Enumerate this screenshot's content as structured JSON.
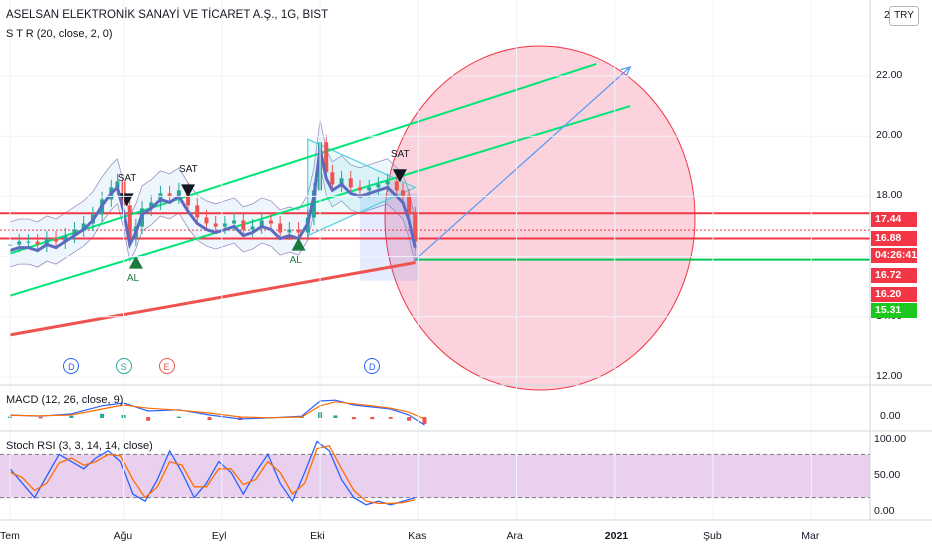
{
  "header": {
    "title": "ASELSAN ELEKTRONİK SANAYİ VE TİCARET A.Ş., 1G, BIST",
    "indicator": "S T R  (20, close, 2, 0)"
  },
  "currency": "TRY",
  "panes": {
    "macd_label": "MACD (12, 26, close, 9)",
    "rsi_label": "Stoch RSI (3, 3, 14, 14, close)"
  },
  "price_axis": {
    "top_partial": "2",
    "ticks": [
      {
        "value": 22,
        "label": "22.00"
      },
      {
        "value": 20,
        "label": "20.00"
      },
      {
        "value": 18,
        "label": "18.00"
      },
      {
        "value": 14,
        "label": "14.00"
      },
      {
        "value": 12,
        "label": "12.00"
      }
    ]
  },
  "price_tags": [
    {
      "value": 17.44,
      "label": "17.44",
      "color": "#f23645"
    },
    {
      "value": 16.88,
      "label": "16.88",
      "color": "#f23645"
    },
    {
      "value": 16.6,
      "label": "04:26:41",
      "color": "#f23645"
    },
    {
      "value": 16.1,
      "label": "16.72",
      "color": "#f23645"
    },
    {
      "value": 15.6,
      "label": "16.20",
      "color": "#f23645"
    },
    {
      "value": 15.1,
      "label": "15.31",
      "color": "#1ec71e"
    }
  ],
  "macd_axis": [
    {
      "value": 0,
      "label": "0.00"
    }
  ],
  "rsi_axis": [
    {
      "value": 100,
      "label": "100.00"
    },
    {
      "value": 50,
      "label": "50.00"
    },
    {
      "value": 0,
      "label": "0.00"
    }
  ],
  "time_axis": [
    {
      "day": 0,
      "label": "Tem"
    },
    {
      "day": 37,
      "label": "Ağu"
    },
    {
      "day": 69,
      "label": "Eyl"
    },
    {
      "day": 101,
      "label": "Eki"
    },
    {
      "day": 133,
      "label": "Kas"
    },
    {
      "day": 165,
      "label": "Ara"
    },
    {
      "day": 197,
      "label": "2021"
    },
    {
      "day": 229,
      "label": "Şub"
    },
    {
      "day": 261,
      "label": "Mar"
    }
  ],
  "signals": [
    {
      "text": "SAT",
      "day": 38,
      "price": 18.1,
      "kind": "sell"
    },
    {
      "text": "SAT",
      "day": 58,
      "price": 18.4,
      "kind": "sell"
    },
    {
      "text": "SAT",
      "day": 127,
      "price": 18.9,
      "kind": "sell"
    },
    {
      "text": "AL",
      "day": 41,
      "price": 15.6,
      "kind": "buy"
    },
    {
      "text": "AL",
      "day": 94,
      "price": 16.2,
      "kind": "buy"
    }
  ],
  "events": [
    {
      "text": "D",
      "day": 20,
      "color": "#2962ff"
    },
    {
      "text": "S",
      "day": 37,
      "color": "#26a69a"
    },
    {
      "text": "E",
      "day": 51,
      "color": "#ef5350"
    },
    {
      "text": "D",
      "day": 118,
      "color": "#2962ff"
    }
  ],
  "chart_data": {
    "type": "candlestick",
    "x_unit": "days from Tem (1 July 2020)",
    "price_range": [
      12,
      23.2
    ],
    "close_series": {
      "x": [
        0,
        3,
        6,
        9,
        12,
        15,
        18,
        21,
        24,
        27,
        30,
        33,
        35,
        37,
        39,
        41,
        43,
        46,
        49,
        52,
        55,
        58,
        61,
        64,
        67,
        70,
        73,
        76,
        79,
        82,
        85,
        88,
        91,
        94,
        97,
        99,
        101,
        103,
        105,
        108,
        111,
        114,
        117,
        120,
        123,
        126,
        128,
        130,
        132
      ],
      "values": [
        16.4,
        16.5,
        16.5,
        16.4,
        16.6,
        16.5,
        16.7,
        16.9,
        17.1,
        17.4,
        17.9,
        18.3,
        18.5,
        17.7,
        16.6,
        17.0,
        17.6,
        17.8,
        18.1,
        18.0,
        18.2,
        17.7,
        17.3,
        17.1,
        17.0,
        17.1,
        17.2,
        16.9,
        17.0,
        17.2,
        17.1,
        16.8,
        16.9,
        16.8,
        17.3,
        18.2,
        19.8,
        18.8,
        18.4,
        18.6,
        18.3,
        18.2,
        18.3,
        18.4,
        18.5,
        18.2,
        18.0,
        17.4,
        16.5
      ]
    },
    "ma_200": {
      "x": [
        0,
        132
      ],
      "values": [
        13.4,
        15.8
      ]
    },
    "channel_lines": [
      {
        "color": "#00e676",
        "x": [
          0,
          191
        ],
        "values": [
          16.1,
          22.4
        ]
      },
      {
        "color": "#00e676",
        "x": [
          0,
          202
        ],
        "values": [
          14.7,
          21.0
        ]
      }
    ],
    "horizontal_levels": [
      {
        "value": 17.44,
        "color": "#f23645",
        "style": "solid"
      },
      {
        "value": 16.88,
        "color": "#f23645",
        "style": "dotted"
      },
      {
        "value": 16.6,
        "color": "#f23645",
        "style": "solid"
      },
      {
        "value": 15.9,
        "color": "#00c853",
        "style": "solid"
      }
    ],
    "projection_arrow": {
      "from": {
        "x": 132,
        "value": 15.9
      },
      "to": {
        "x": 202,
        "value": 22.3
      }
    },
    "macd": {
      "x": [
        0,
        10,
        20,
        30,
        37,
        45,
        55,
        65,
        75,
        85,
        95,
        101,
        106,
        112,
        118,
        124,
        130,
        135
      ],
      "macd": [
        0.05,
        0.02,
        0.08,
        0.28,
        0.35,
        0.15,
        0.18,
        0.05,
        -0.05,
        -0.02,
        0.02,
        0.4,
        0.42,
        0.3,
        0.25,
        0.2,
        0.05,
        -0.2
      ],
      "signal": [
        0.04,
        0.03,
        0.05,
        0.2,
        0.3,
        0.22,
        0.17,
        0.1,
        0.0,
        -0.02,
        0.0,
        0.28,
        0.38,
        0.33,
        0.28,
        0.22,
        0.12,
        -0.05
      ],
      "range": [
        -0.5,
        0.8
      ]
    },
    "stoch_rsi": {
      "x": [
        0,
        4,
        8,
        12,
        16,
        20,
        24,
        28,
        32,
        36,
        40,
        44,
        48,
        52,
        56,
        60,
        64,
        68,
        72,
        76,
        80,
        84,
        88,
        92,
        96,
        100,
        104,
        108,
        112,
        116,
        120,
        124,
        128,
        132
      ],
      "k": [
        60,
        40,
        20,
        50,
        80,
        70,
        60,
        75,
        85,
        70,
        25,
        15,
        45,
        85,
        55,
        20,
        40,
        70,
        55,
        25,
        55,
        80,
        40,
        15,
        55,
        98,
        85,
        45,
        20,
        10,
        15,
        10,
        15,
        20
      ],
      "d": [
        55,
        48,
        30,
        40,
        68,
        75,
        65,
        70,
        80,
        78,
        45,
        20,
        35,
        70,
        65,
        35,
        35,
        60,
        60,
        38,
        45,
        70,
        55,
        25,
        40,
        88,
        92,
        60,
        30,
        15,
        12,
        12,
        13,
        17
      ],
      "levels": [
        80,
        20
      ],
      "range": [
        0,
        100
      ]
    }
  }
}
